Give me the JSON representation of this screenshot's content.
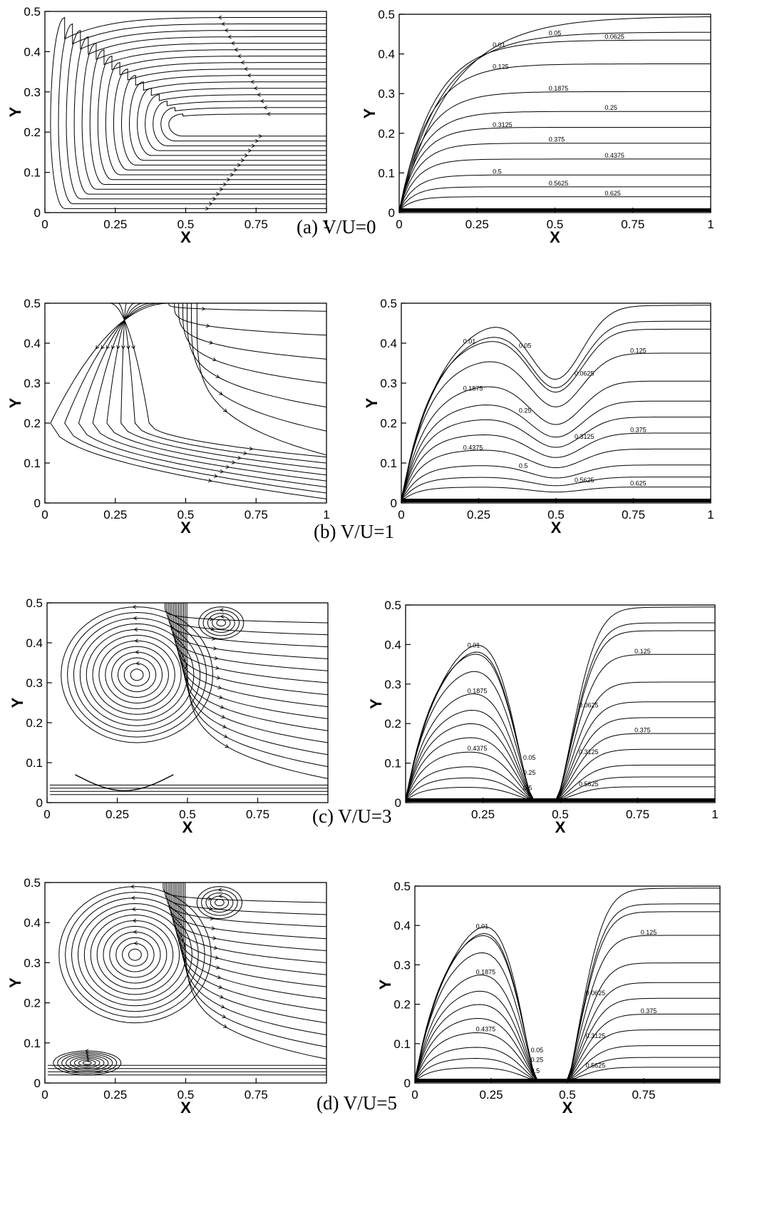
{
  "figure": {
    "panels": [
      {
        "id": "a",
        "caption": "(a) V/U=0",
        "streamlines": {
          "xlabel": "X",
          "ylabel": "Y",
          "xticks": [
            "0",
            "0.25",
            "0.5",
            "0.75",
            "1"
          ],
          "yticks": [
            "0",
            "0.1",
            "0.2",
            "0.3",
            "0.4",
            "0.5"
          ]
        },
        "contours": {
          "xlabel": "X",
          "ylabel": "Y",
          "xticks": [
            "0",
            "0.25",
            "0.5",
            "0.75",
            "1"
          ],
          "yticks": [
            "0",
            "0.1",
            "0.2",
            "0.3",
            "0.4",
            "0.5"
          ],
          "labels": [
            "0.01",
            "0.05",
            "0.0625",
            "0.125",
            "0.1875",
            "0.25",
            "0.3125",
            "0.375",
            "0.4375",
            "0.5",
            "0.5625",
            "0.625"
          ]
        }
      },
      {
        "id": "b",
        "caption": "(b) V/U=1",
        "streamlines": {
          "xlabel": "X",
          "ylabel": "Y",
          "xticks": [
            "0",
            "0.25",
            "0.5",
            "0.75",
            "1"
          ],
          "yticks": [
            "0",
            "0.1",
            "0.2",
            "0.3",
            "0.4",
            "0.5"
          ]
        },
        "contours": {
          "xlabel": "X",
          "ylabel": "Y",
          "xticks": [
            "0",
            "0.25",
            "0.5",
            "0.75",
            "1"
          ],
          "yticks": [
            "0",
            "0.1",
            "0.2",
            "0.3",
            "0.4",
            "0.5"
          ],
          "labels": [
            "0.01",
            "0.05",
            "0.0625",
            "0.125",
            "0.1875",
            "0.25",
            "0.3125",
            "0.375",
            "0.4375",
            "0.5",
            "0.5625",
            "0.625"
          ]
        }
      },
      {
        "id": "c",
        "caption": "(c) V/U=3",
        "streamlines": {
          "xlabel": "X",
          "ylabel": "Y",
          "xticks": [
            "0",
            "0.25",
            "0.5",
            "0.75"
          ],
          "yticks": [
            "0",
            "0.1",
            "0.2",
            "0.3",
            "0.4",
            "0.5"
          ]
        },
        "contours": {
          "xlabel": "X",
          "ylabel": "Y",
          "xticks": [
            "0.25",
            "0.5",
            "0.75",
            "1"
          ],
          "yticks": [
            "0",
            "0.1",
            "0.2",
            "0.3",
            "0.4",
            "0.5"
          ],
          "labels": [
            "0.01",
            "0.05",
            "0.0625",
            "0.125",
            "0.1875",
            "0.25",
            "0.3125",
            "0.375",
            "0.4375",
            "0.5",
            "0.5625"
          ]
        }
      },
      {
        "id": "d",
        "caption": "(d) V/U=5",
        "streamlines": {
          "xlabel": "X",
          "ylabel": "Y",
          "xticks": [
            "0",
            "0.25",
            "0.5",
            "0.75"
          ],
          "yticks": [
            "0",
            "0.1",
            "0.2",
            "0.3",
            "0.4",
            "0.5"
          ]
        },
        "contours": {
          "xlabel": "X",
          "ylabel": "Y",
          "xticks": [
            "0",
            "0.25",
            "0.5",
            "0.75"
          ],
          "yticks": [
            "0",
            "0.1",
            "0.2",
            "0.3",
            "0.4",
            "0.5"
          ],
          "labels": [
            "0.01",
            "0.05",
            "0.0625",
            "0.125",
            "0.1875",
            "0.25",
            "0.3125",
            "0.375",
            "0.4375",
            "0.5",
            "0.5625"
          ]
        }
      }
    ]
  }
}
